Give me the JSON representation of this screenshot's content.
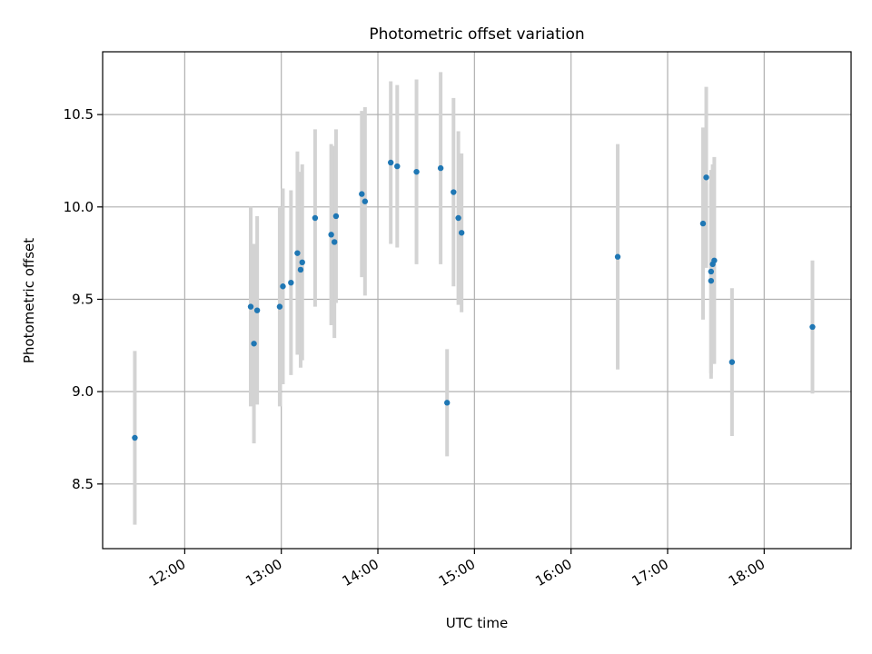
{
  "chart_data": {
    "type": "scatter",
    "title": "Photometric offset variation",
    "xlabel": "UTC time",
    "ylabel": "Photometric offset",
    "xlim": [
      "11:09",
      "18:54"
    ],
    "ylim": [
      8.15,
      10.84
    ],
    "x_ticks": [
      "12:00",
      "13:00",
      "14:00",
      "15:00",
      "16:00",
      "17:00",
      "18:00"
    ],
    "y_ticks": [
      "8.5",
      "9.0",
      "9.5",
      "10.0",
      "10.5"
    ],
    "grid": true,
    "legend": "none",
    "colors": {
      "points": "#1f77b4",
      "error_bars": "#d3d3d3",
      "grid": "#b0b0b0"
    },
    "points": [
      {
        "x": "11:29",
        "y": 8.75,
        "err": 0.47
      },
      {
        "x": "12:41",
        "y": 9.46,
        "err": 0.54
      },
      {
        "x": "12:43",
        "y": 9.26,
        "err": 0.54
      },
      {
        "x": "12:45",
        "y": 9.44,
        "err": 0.51
      },
      {
        "x": "12:59",
        "y": 9.46,
        "err": 0.54
      },
      {
        "x": "13:01",
        "y": 9.57,
        "err": 0.53
      },
      {
        "x": "13:06",
        "y": 9.59,
        "err": 0.5
      },
      {
        "x": "13:10",
        "y": 9.75,
        "err": 0.55
      },
      {
        "x": "13:12",
        "y": 9.66,
        "err": 0.53
      },
      {
        "x": "13:13",
        "y": 9.7,
        "err": 0.53
      },
      {
        "x": "13:21",
        "y": 9.94,
        "err": 0.48
      },
      {
        "x": "13:31",
        "y": 9.85,
        "err": 0.49
      },
      {
        "x": "13:33",
        "y": 9.81,
        "err": 0.52
      },
      {
        "x": "13:34",
        "y": 9.95,
        "err": 0.47
      },
      {
        "x": "13:50",
        "y": 10.07,
        "err": 0.45
      },
      {
        "x": "13:52",
        "y": 10.03,
        "err": 0.51
      },
      {
        "x": "14:08",
        "y": 10.24,
        "err": 0.44
      },
      {
        "x": "14:12",
        "y": 10.22,
        "err": 0.44
      },
      {
        "x": "14:24",
        "y": 10.19,
        "err": 0.5
      },
      {
        "x": "14:39",
        "y": 10.21,
        "err": 0.52
      },
      {
        "x": "14:43",
        "y": 8.94,
        "err": 0.29
      },
      {
        "x": "14:47",
        "y": 10.08,
        "err": 0.51
      },
      {
        "x": "14:50",
        "y": 9.94,
        "err": 0.47
      },
      {
        "x": "14:52",
        "y": 9.86,
        "err": 0.43
      },
      {
        "x": "16:29",
        "y": 9.73,
        "err": 0.61
      },
      {
        "x": "17:22",
        "y": 9.91,
        "err": 0.52
      },
      {
        "x": "17:24",
        "y": 10.16,
        "err": 0.49
      },
      {
        "x": "17:27",
        "y": 9.65,
        "err": 0.55
      },
      {
        "x": "17:27",
        "y": 9.6,
        "err": 0.53
      },
      {
        "x": "17:28",
        "y": 9.69,
        "err": 0.54
      },
      {
        "x": "17:29",
        "y": 9.71,
        "err": 0.56
      },
      {
        "x": "17:40",
        "y": 9.16,
        "err": 0.4
      },
      {
        "x": "18:30",
        "y": 9.35,
        "err": 0.36
      }
    ]
  }
}
